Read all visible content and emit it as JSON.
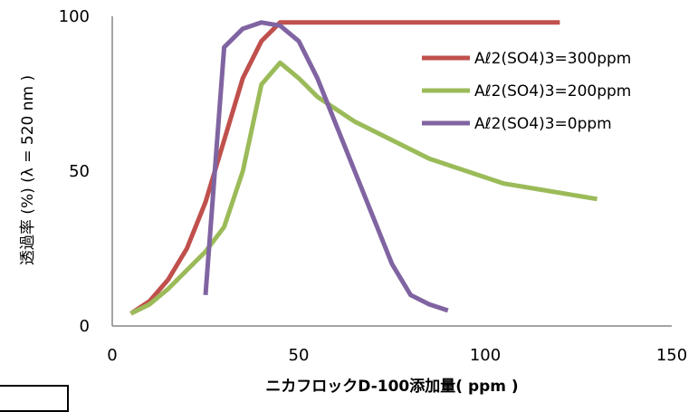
{
  "chart_data": {
    "type": "line",
    "title": "",
    "xlabel": "ニカフロックD-100添加量( ppm )",
    "ylabel": "透過率 (%) (λ = 520 nm )",
    "xlim": [
      0,
      150
    ],
    "ylim": [
      0,
      100
    ],
    "x_ticks": [
      "0",
      "50",
      "100",
      "150"
    ],
    "y_ticks": [
      "0",
      "50",
      "100"
    ],
    "grid": false,
    "legend_position": "right",
    "series": [
      {
        "name": "Aℓ2(SO4)3=300ppm",
        "color": "#C0504D",
        "x": [
          5,
          10,
          15,
          20,
          25,
          30,
          35,
          40,
          45,
          50,
          60,
          70,
          80,
          90,
          100,
          110,
          120
        ],
        "y": [
          4,
          8,
          15,
          25,
          40,
          60,
          80,
          92,
          98,
          98,
          98,
          98,
          98,
          98,
          98,
          98,
          98
        ]
      },
      {
        "name": "Aℓ2(SO4)3=200ppm",
        "color": "#9BBB59",
        "x": [
          5,
          10,
          15,
          20,
          25,
          30,
          35,
          40,
          45,
          50,
          55,
          65,
          75,
          85,
          95,
          105,
          115,
          125,
          130
        ],
        "y": [
          4,
          7,
          12,
          18,
          24,
          32,
          50,
          78,
          85,
          80,
          74,
          66,
          60,
          54,
          50,
          46,
          44,
          42,
          41
        ]
      },
      {
        "name": "Aℓ2(SO4)3=0ppm",
        "color": "#8064A2",
        "x": [
          25,
          30,
          35,
          40,
          45,
          50,
          55,
          60,
          65,
          70,
          75,
          80,
          85,
          90
        ],
        "y": [
          10,
          90,
          96,
          98,
          97,
          92,
          80,
          65,
          50,
          35,
          20,
          10,
          7,
          5
        ]
      }
    ]
  }
}
